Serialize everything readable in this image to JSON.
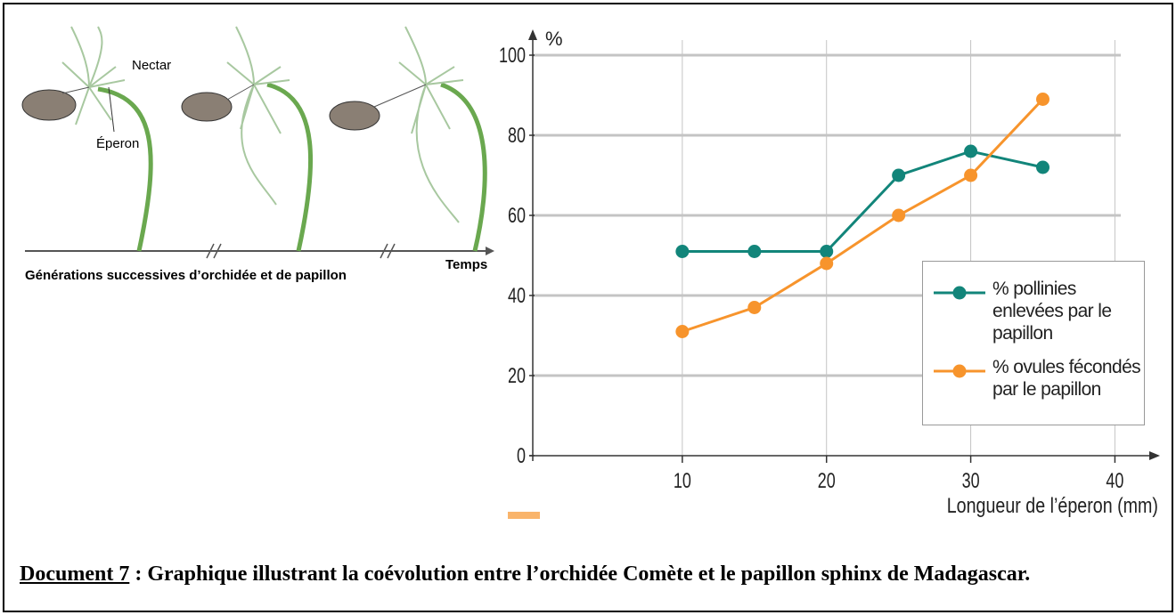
{
  "illustration": {
    "labels": {
      "nectar": "Nectar",
      "eperon": "Éperon",
      "time": "Temps",
      "caption": "Générations successives d’orchidée et de papillon"
    }
  },
  "chart_data": {
    "type": "line",
    "x_label": "Longueur de l’éperon (mm)",
    "y_label": "%",
    "x": [
      10,
      15,
      20,
      25,
      30,
      35
    ],
    "series": [
      {
        "name": "% pollinies enlevées par le papillon",
        "color": "#12857a",
        "values": [
          51,
          51,
          51,
          70,
          76,
          72
        ]
      },
      {
        "name": "% ovules fécondés par le papillon",
        "color": "#f7942c",
        "values": [
          31,
          37,
          48,
          60,
          70,
          89
        ]
      }
    ],
    "xlim": [
      0,
      43
    ],
    "ylim": [
      0,
      106
    ],
    "xticks": [
      10,
      20,
      30,
      40
    ],
    "yticks": [
      0,
      20,
      40,
      60,
      80,
      100
    ],
    "grid": true,
    "legend": "lower right"
  },
  "document": {
    "label": "Document 7",
    "text": " : Graphique illustrant la coévolution entre l’orchidée Comète et le papillon sphinx de Madagascar."
  }
}
